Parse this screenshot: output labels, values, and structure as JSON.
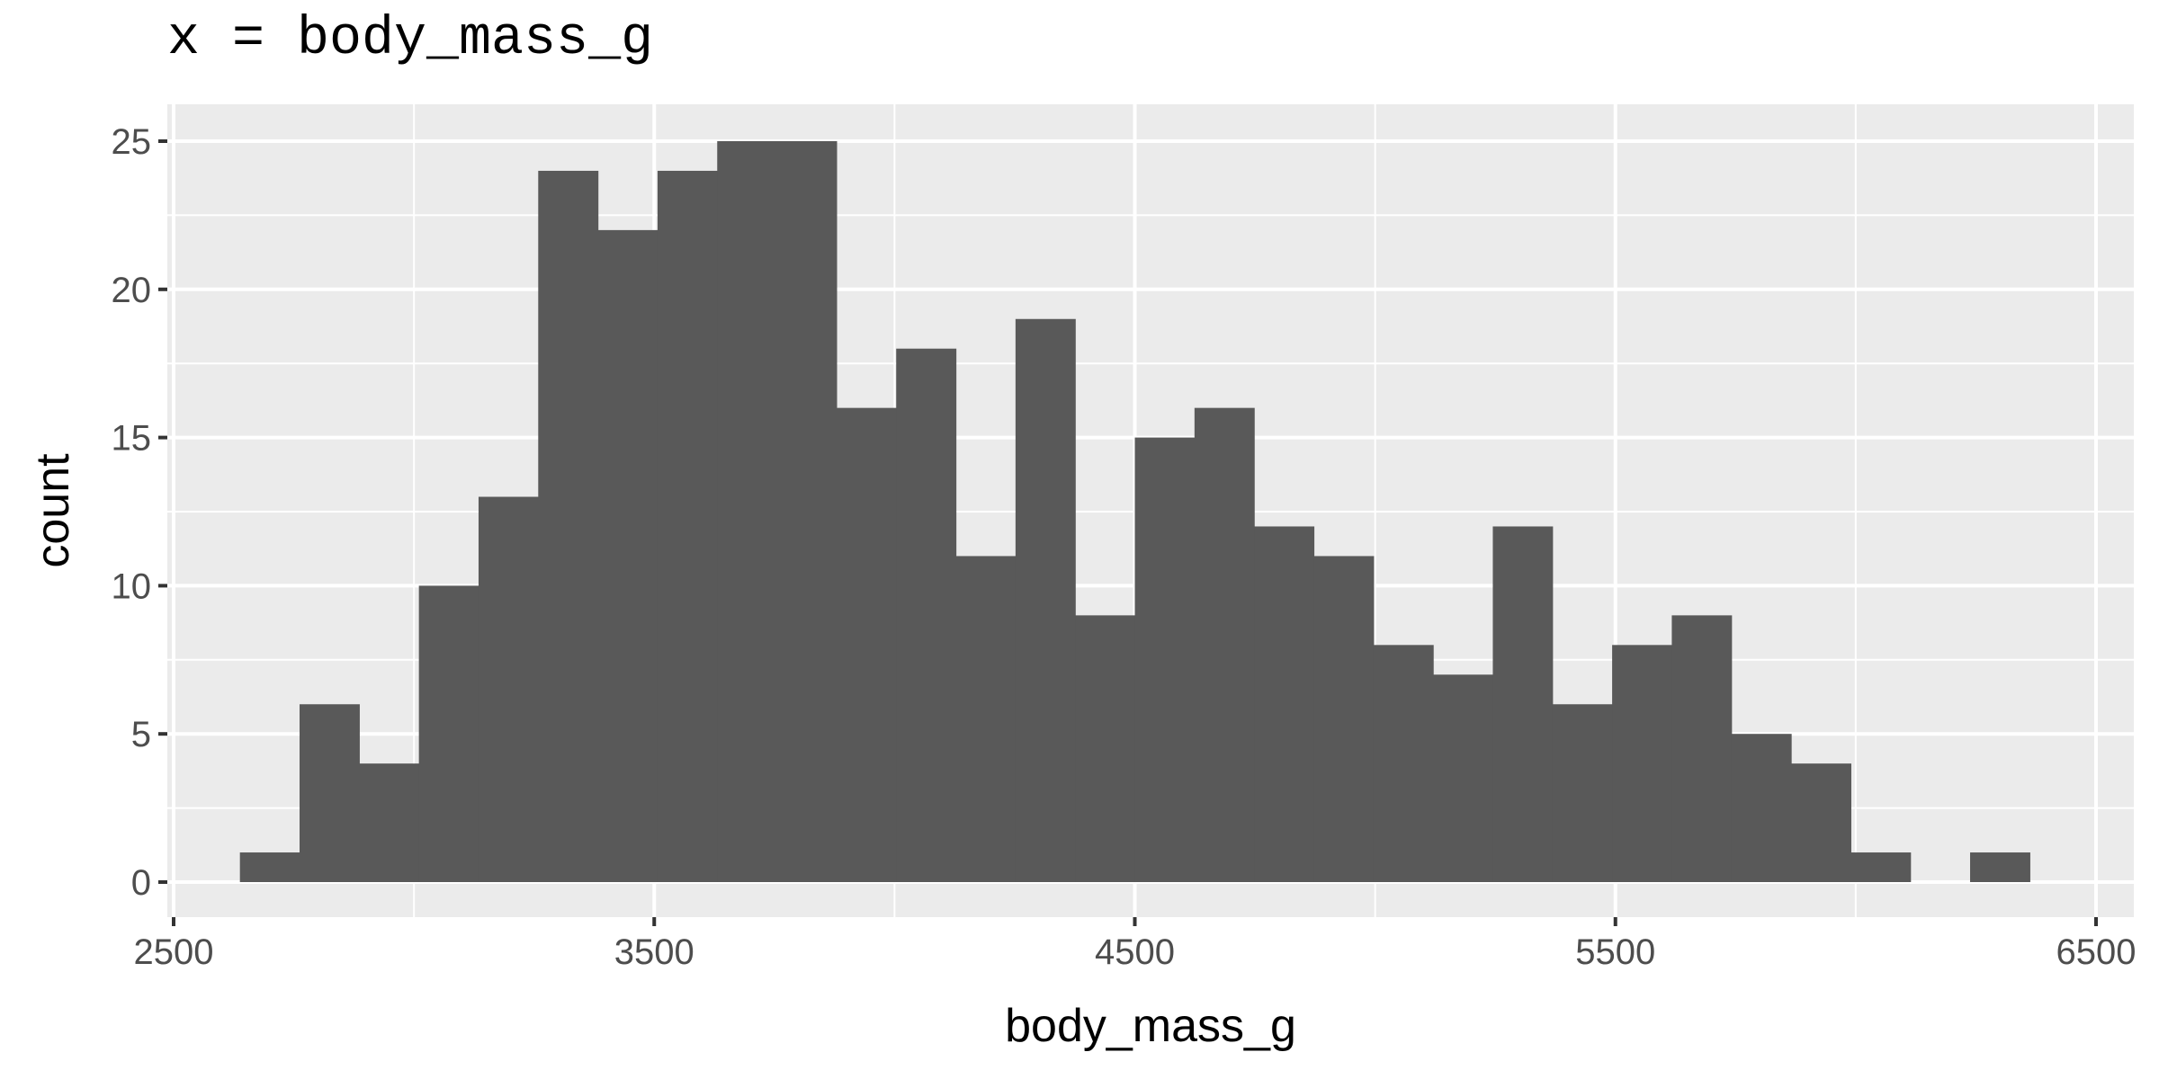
{
  "title": "x = body_mass_g",
  "chart_data": {
    "type": "bar",
    "subtype": "histogram",
    "xlabel": "body_mass_g",
    "ylabel": "count",
    "xlim": [
      2500,
      6500
    ],
    "ylim": [
      0,
      25
    ],
    "x_ticks": [
      2500,
      3500,
      4500,
      5500,
      6500
    ],
    "y_ticks": [
      0,
      5,
      10,
      15,
      20,
      25
    ],
    "grid": true,
    "bin_width": 124.14,
    "bin_start": 2637.93,
    "counts": [
      1,
      6,
      4,
      10,
      13,
      24,
      22,
      24,
      25,
      25,
      16,
      18,
      11,
      19,
      9,
      15,
      16,
      12,
      11,
      8,
      7,
      12,
      6,
      8,
      9,
      5,
      4,
      1,
      0,
      1
    ],
    "bar_color": "#595959"
  },
  "colors": {
    "panel": "#ebebeb",
    "grid": "#ffffff",
    "bar": "#595959",
    "tick_text": "#4d4d4d"
  }
}
